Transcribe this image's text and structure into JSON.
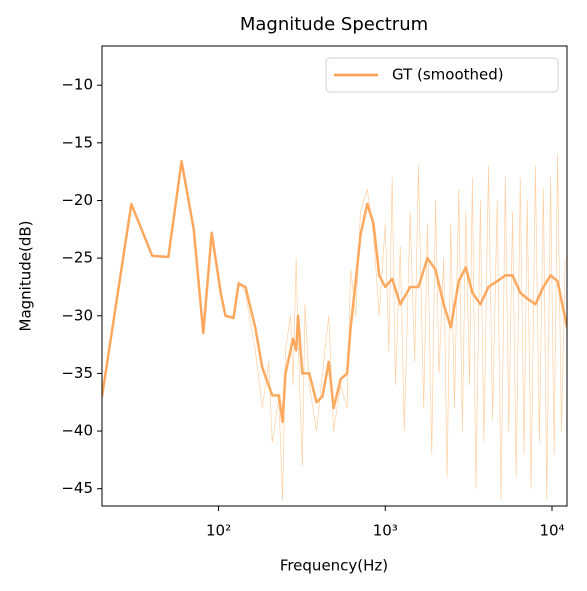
{
  "chart_data": {
    "type": "line",
    "title": "Magnitude Spectrum",
    "xlabel": "Frequency(Hz)",
    "ylabel": "Magnitude(dB)",
    "xscale": "log",
    "xlim": [
      20,
      12300
    ],
    "ylim": [
      -46.5,
      -6.6
    ],
    "xticks": [
      {
        "value": 100,
        "label": "10²"
      },
      {
        "value": 1000,
        "label": "10³"
      },
      {
        "value": 10000,
        "label": "10⁴"
      }
    ],
    "yticks": [
      {
        "value": -45,
        "label": "−45"
      },
      {
        "value": -40,
        "label": "−40"
      },
      {
        "value": -35,
        "label": "−35"
      },
      {
        "value": -30,
        "label": "−30"
      },
      {
        "value": -25,
        "label": "−25"
      },
      {
        "value": -20,
        "label": "−20"
      },
      {
        "value": -15,
        "label": "−15"
      },
      {
        "value": -10,
        "label": "−10"
      }
    ],
    "legend": "upper right",
    "series": [
      {
        "color": "#ffcfa3",
        "width": 0.7,
        "x": [
          20,
          30,
          40,
          50,
          60,
          71,
          81,
          91,
          103,
          110,
          123,
          132,
          145,
          166,
          183,
          200,
          210,
          230,
          242,
          252,
          270,
          280,
          292,
          300,
          318,
          330,
          350,
          387,
          420,
          458,
          490,
          540,
          590,
          620,
          665,
          710,
          780,
          850,
          920,
          1000,
          1050,
          1100,
          1150,
          1230,
          1300,
          1410,
          1500,
          1580,
          1700,
          1790,
          1900,
          2000,
          2100,
          2240,
          2350,
          2470,
          2600,
          2760,
          2900,
          3040,
          3200,
          3330,
          3500,
          3720,
          3900,
          4160,
          4400,
          4690,
          4950,
          5250,
          5500,
          5800,
          6100,
          6450,
          6800,
          7100,
          7500,
          7950,
          8400,
          8880,
          9300,
          9800,
          10300,
          10800,
          11400,
          12000
        ],
        "values": [
          -37,
          -20.5,
          -24.8,
          -24.9,
          -16.8,
          -22.5,
          -31.5,
          -22.8,
          -28,
          -30,
          -30,
          -27,
          -28,
          -33,
          -38,
          -34,
          -41,
          -37,
          -46,
          -33,
          -30,
          -36,
          -25,
          -32,
          -43,
          -29,
          -36,
          -40,
          -35,
          -30,
          -40,
          -36,
          -38,
          -26,
          -30,
          -21,
          -19,
          -23,
          -30,
          -22,
          -33,
          -18,
          -36,
          -24,
          -40,
          -21,
          -34,
          -17,
          -38,
          -22,
          -42,
          -20,
          -35,
          -25,
          -44,
          -22,
          -38,
          -19,
          -40,
          -21,
          -36,
          -18,
          -45,
          -20,
          -41,
          -17,
          -39,
          -20,
          -46,
          -18,
          -40,
          -21,
          -44,
          -18,
          -42,
          -20,
          -45,
          -17,
          -41,
          -19,
          -46,
          -18,
          -42,
          -16,
          -40,
          -25
        ]
      },
      {
        "name": "GT (smoothed)",
        "color": "#fea04f",
        "width": 2.5,
        "x": [
          20,
          30,
          40,
          50,
          60,
          71,
          81,
          91,
          103,
          110,
          123,
          132,
          145,
          166,
          183,
          210,
          230,
          242,
          252,
          280,
          292,
          300,
          318,
          350,
          387,
          420,
          458,
          490,
          540,
          590,
          620,
          665,
          710,
          780,
          850,
          920,
          1000,
          1100,
          1230,
          1410,
          1580,
          1790,
          2000,
          2240,
          2470,
          2760,
          3040,
          3330,
          3720,
          4160,
          4690,
          5250,
          5800,
          6450,
          7100,
          7950,
          8880,
          9800,
          10800,
          12300
        ],
        "values": [
          -37,
          -20.3,
          -24.8,
          -24.9,
          -16.6,
          -22.5,
          -31.5,
          -22.8,
          -28,
          -30,
          -30.2,
          -27.2,
          -27.5,
          -31,
          -34.5,
          -36.9,
          -36.9,
          -39.2,
          -35,
          -32,
          -33,
          -30,
          -35,
          -35,
          -37.5,
          -37,
          -34,
          -38,
          -35.5,
          -35,
          -31,
          -27,
          -23,
          -20.3,
          -22,
          -26.5,
          -27.5,
          -26.8,
          -29,
          -27.5,
          -27.5,
          -25,
          -26,
          -29,
          -31,
          -27,
          -25.8,
          -28,
          -29,
          -27.5,
          -27,
          -26.5,
          -26.5,
          -28,
          -28.5,
          -29,
          -27.5,
          -26.5,
          -27,
          -31
        ]
      }
    ]
  }
}
